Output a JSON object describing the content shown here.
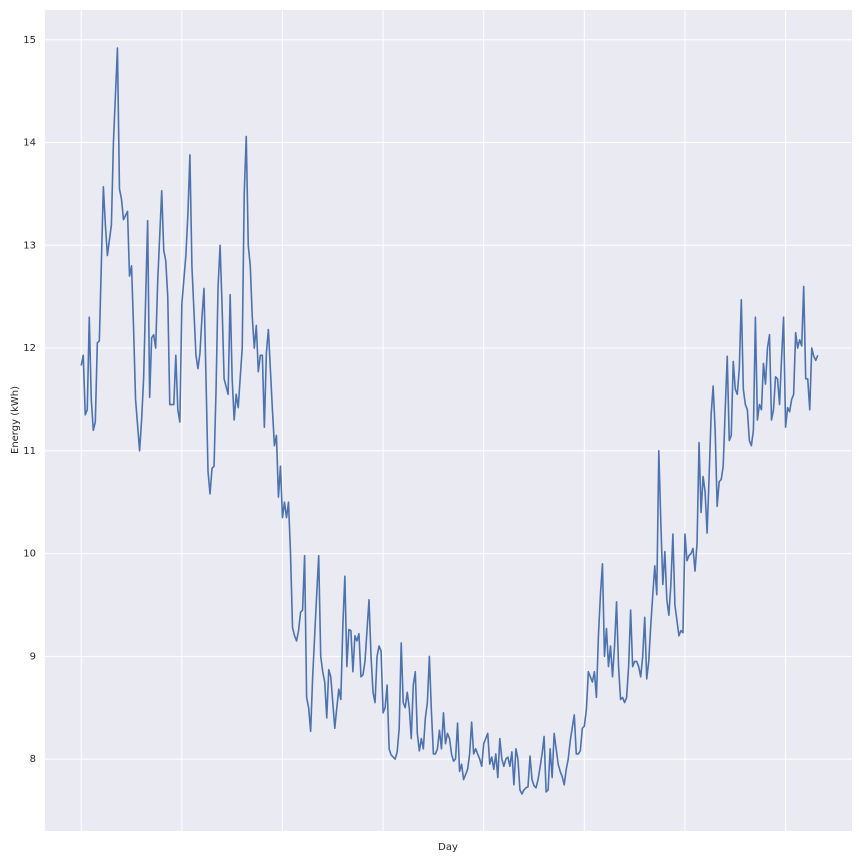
{
  "chart_data": {
    "type": "line",
    "x_label": "Day",
    "y_label": "Energy (kWh)",
    "color": "#4c72b0",
    "grid": true,
    "xlim": [
      -18,
      383
    ],
    "xgrid": [
      0,
      50,
      100,
      150,
      200,
      250,
      300,
      350
    ],
    "ylim": [
      7.3,
      15.29
    ],
    "yticks": [
      8,
      9,
      10,
      11,
      12,
      13,
      14,
      15
    ],
    "x": [
      0,
      1,
      2,
      3,
      4,
      5,
      6,
      7,
      8,
      9,
      11,
      12,
      13,
      15,
      16,
      18,
      19,
      20,
      21,
      23,
      24,
      25,
      26,
      27,
      29,
      30,
      31,
      33,
      34,
      35,
      36,
      37,
      38,
      40,
      41,
      42,
      43,
      44,
      46,
      47,
      48,
      49,
      50,
      52,
      53,
      54,
      55,
      57,
      58,
      59,
      60,
      61,
      62,
      63,
      64,
      65,
      66,
      67,
      68,
      69,
      70,
      71,
      73,
      74,
      75,
      76,
      77,
      78,
      80,
      81,
      82,
      83,
      84,
      85,
      86,
      87,
      88,
      89,
      90,
      91,
      92,
      93,
      95,
      96,
      97,
      98,
      99,
      100,
      101,
      102,
      103,
      104,
      105,
      106,
      107,
      108,
      109,
      110,
      111,
      112,
      113,
      114,
      115,
      117,
      118,
      119,
      120,
      121,
      122,
      123,
      124,
      125,
      126,
      127,
      128,
      129,
      130,
      131,
      132,
      133,
      134,
      135,
      136,
      137,
      138,
      139,
      140,
      141,
      143,
      144,
      145,
      146,
      147,
      148,
      149,
      150,
      151,
      152,
      153,
      154,
      155,
      156,
      157,
      158,
      159,
      160,
      161,
      162,
      163,
      164,
      165,
      166,
      167,
      168,
      169,
      170,
      171,
      172,
      173,
      174,
      175,
      176,
      177,
      178,
      179,
      180,
      181,
      182,
      183,
      184,
      185,
      186,
      187,
      188,
      189,
      190,
      191,
      192,
      193,
      194,
      195,
      196,
      197,
      198,
      199,
      200,
      201,
      202,
      203,
      204,
      205,
      206,
      207,
      208,
      209,
      210,
      211,
      212,
      213,
      214,
      215,
      216,
      217,
      218,
      219,
      220,
      221,
      222,
      223,
      224,
      225,
      226,
      227,
      228,
      229,
      230,
      231,
      232,
      233,
      234,
      235,
      236,
      237,
      238,
      239,
      240,
      241,
      242,
      243,
      245,
      246,
      247,
      248,
      249,
      250,
      251,
      252,
      253,
      254,
      255,
      256,
      257,
      258,
      259,
      260,
      261,
      262,
      263,
      264,
      265,
      266,
      267,
      268,
      269,
      270,
      271,
      272,
      273,
      274,
      275,
      276,
      277,
      278,
      279,
      280,
      281,
      282,
      283,
      284,
      285,
      286,
      287,
      288,
      289,
      290,
      291,
      292,
      293,
      294,
      295,
      296,
      297,
      298,
      299,
      300,
      301,
      302,
      303,
      304,
      305,
      306,
      307,
      308,
      309,
      310,
      311,
      312,
      313,
      314,
      315,
      316,
      317,
      318,
      319,
      320,
      321,
      322,
      323,
      324,
      325,
      326,
      327,
      328,
      329,
      330,
      331,
      332,
      333,
      334,
      335,
      336,
      337,
      338,
      339,
      340,
      341,
      342,
      343,
      344,
      345,
      346,
      347,
      348,
      349,
      350,
      351,
      352,
      353,
      354,
      355,
      356,
      357,
      358,
      359,
      360,
      361,
      362,
      363,
      364,
      365,
      366
    ],
    "values": [
      11.83,
      11.93,
      11.35,
      11.4,
      12.3,
      11.5,
      11.2,
      11.28,
      12.05,
      12.07,
      13.57,
      13.2,
      12.9,
      13.2,
      14.0,
      14.92,
      13.55,
      13.45,
      13.25,
      13.33,
      12.7,
      12.8,
      12.2,
      11.5,
      11.0,
      11.3,
      11.7,
      13.24,
      11.52,
      12.1,
      12.13,
      12.0,
      12.65,
      13.53,
      12.95,
      12.85,
      12.5,
      11.45,
      11.45,
      11.93,
      11.4,
      11.28,
      12.43,
      12.9,
      13.3,
      13.88,
      12.8,
      11.93,
      11.8,
      11.95,
      12.3,
      12.58,
      11.7,
      10.8,
      10.58,
      10.83,
      10.85,
      11.6,
      12.6,
      13.0,
      12.4,
      11.7,
      11.55,
      12.52,
      11.7,
      11.3,
      11.55,
      11.42,
      12.0,
      13.5,
      14.06,
      13.0,
      12.8,
      12.3,
      12.0,
      12.22,
      11.77,
      11.93,
      11.93,
      11.23,
      11.95,
      12.18,
      11.4,
      11.05,
      11.15,
      10.55,
      10.85,
      10.35,
      10.5,
      10.35,
      10.5,
      10.0,
      9.28,
      9.2,
      9.15,
      9.25,
      9.43,
      9.45,
      9.98,
      8.6,
      8.5,
      8.27,
      8.8,
      9.6,
      9.98,
      9.0,
      8.85,
      8.75,
      8.4,
      8.87,
      8.8,
      8.55,
      8.3,
      8.5,
      8.68,
      8.58,
      9.3,
      9.78,
      8.9,
      9.26,
      9.25,
      8.85,
      9.2,
      9.15,
      9.22,
      8.8,
      8.82,
      8.95,
      9.55,
      9.0,
      8.65,
      8.55,
      9.0,
      9.1,
      9.05,
      8.45,
      8.5,
      8.72,
      8.1,
      8.04,
      8.02,
      8.0,
      8.07,
      8.3,
      9.13,
      8.55,
      8.5,
      8.65,
      8.5,
      8.2,
      8.72,
      8.85,
      8.25,
      8.08,
      8.2,
      8.1,
      8.4,
      8.55,
      9.0,
      8.47,
      8.05,
      8.05,
      8.1,
      8.28,
      8.1,
      8.45,
      8.15,
      8.25,
      8.2,
      8.05,
      7.98,
      8.0,
      8.35,
      7.88,
      7.95,
      7.8,
      7.85,
      7.9,
      8.05,
      8.36,
      8.05,
      8.1,
      8.05,
      8.0,
      7.93,
      8.15,
      8.2,
      8.25,
      7.95,
      8.02,
      7.9,
      8.05,
      7.82,
      8.2,
      8.0,
      7.93,
      8.0,
      8.02,
      7.93,
      8.07,
      7.75,
      8.1,
      8.0,
      7.7,
      7.66,
      7.7,
      7.72,
      7.73,
      8.03,
      7.8,
      7.74,
      7.72,
      7.8,
      7.92,
      8.05,
      8.22,
      7.68,
      7.7,
      8.1,
      7.82,
      8.25,
      8.1,
      7.95,
      7.88,
      7.83,
      7.75,
      7.9,
      8.0,
      8.18,
      8.43,
      8.05,
      8.05,
      8.08,
      8.3,
      8.32,
      8.48,
      8.85,
      8.8,
      8.75,
      8.85,
      8.6,
      9.2,
      9.6,
      9.9,
      9.0,
      9.27,
      8.9,
      9.1,
      8.8,
      9.1,
      9.53,
      8.9,
      8.58,
      8.6,
      8.55,
      8.6,
      8.9,
      9.45,
      8.9,
      8.95,
      8.95,
      8.9,
      8.8,
      9.0,
      9.38,
      8.78,
      8.95,
      9.3,
      9.6,
      9.88,
      9.6,
      11.0,
      10.3,
      9.7,
      10.02,
      9.55,
      9.4,
      9.7,
      10.19,
      9.5,
      9.35,
      9.2,
      9.25,
      9.23,
      10.19,
      9.93,
      9.98,
      10.0,
      10.05,
      9.83,
      10.1,
      11.08,
      10.4,
      10.75,
      10.6,
      10.2,
      10.75,
      11.35,
      11.63,
      11.2,
      10.46,
      10.7,
      10.72,
      10.85,
      11.4,
      11.92,
      11.1,
      11.15,
      11.87,
      11.6,
      11.55,
      11.8,
      12.47,
      11.6,
      11.45,
      11.4,
      11.1,
      11.05,
      11.2,
      12.3,
      11.3,
      11.45,
      11.4,
      11.85,
      11.65,
      12.0,
      12.13,
      11.3,
      11.4,
      11.72,
      11.7,
      11.45,
      11.9,
      12.3,
      11.23,
      11.42,
      11.38,
      11.5,
      11.55,
      12.15,
      12.0,
      12.08,
      12.02,
      12.6,
      11.7,
      11.7,
      11.4,
      12.0,
      11.92,
      11.88,
      11.93
    ]
  }
}
